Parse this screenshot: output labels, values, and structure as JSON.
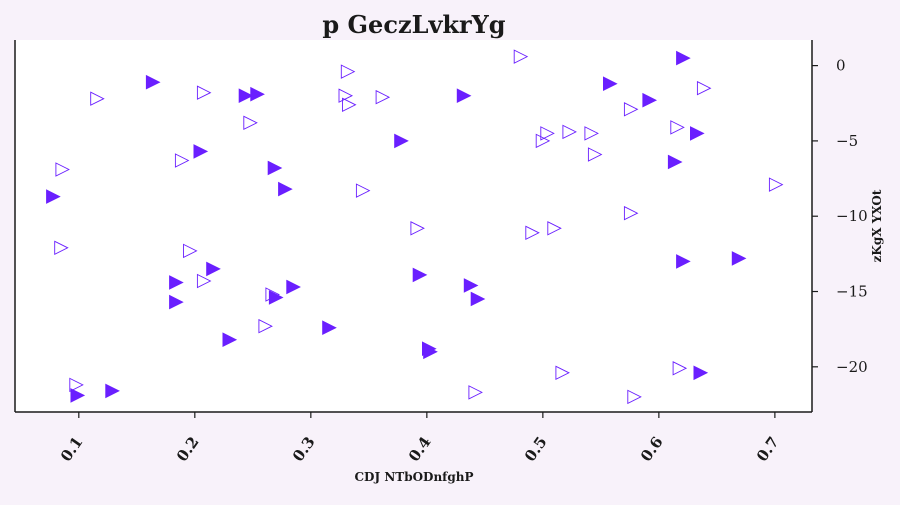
{
  "chart_data": {
    "type": "scatter",
    "title": "p GeczLvkrYg",
    "xlabel": "CDJ NTbODnfghP",
    "ylabel": "zKgX YXOt",
    "xlim": [
      0.045,
      0.732
    ],
    "ylim": [
      -23.0,
      1.7
    ],
    "xticks": [
      0.1,
      0.2,
      0.3,
      0.4,
      0.5,
      0.6,
      0.7
    ],
    "yticks": [
      0,
      -5,
      -10,
      -15,
      -20
    ],
    "y_axis_side": "right",
    "grid": false,
    "colors": {
      "marker": "#6a1fff",
      "background": "#ffffff",
      "page": "#f8f2fa"
    },
    "series": [
      {
        "marker": "filled-right-triangle",
        "points": [
          [
            0.163,
            -1.1
          ],
          [
            0.243,
            -2.0
          ],
          [
            0.253,
            -1.9
          ],
          [
            0.204,
            -5.7
          ],
          [
            0.268,
            -6.8
          ],
          [
            0.277,
            -8.2
          ],
          [
            0.077,
            -8.7
          ],
          [
            0.215,
            -13.5
          ],
          [
            0.183,
            -14.4
          ],
          [
            0.183,
            -15.7
          ],
          [
            0.284,
            -14.7
          ],
          [
            0.269,
            -15.4
          ],
          [
            0.229,
            -18.2
          ],
          [
            0.315,
            -17.4
          ],
          [
            0.128,
            -21.6
          ],
          [
            0.098,
            -21.9
          ],
          [
            0.377,
            -5.0
          ],
          [
            0.431,
            -2.0
          ],
          [
            0.393,
            -13.9
          ],
          [
            0.437,
            -14.6
          ],
          [
            0.443,
            -15.5
          ],
          [
            0.401,
            -18.8
          ],
          [
            0.402,
            -19.0
          ],
          [
            0.557,
            -1.2
          ],
          [
            0.591,
            -2.3
          ],
          [
            0.62,
            0.5
          ],
          [
            0.632,
            -4.5
          ],
          [
            0.613,
            -6.4
          ],
          [
            0.62,
            -13.0
          ],
          [
            0.668,
            -12.8
          ],
          [
            0.635,
            -20.4
          ]
        ]
      },
      {
        "marker": "hollow-right-triangle",
        "points": [
          [
            0.115,
            -2.2
          ],
          [
            0.085,
            -6.9
          ],
          [
            0.084,
            -12.1
          ],
          [
            0.097,
            -21.2
          ],
          [
            0.207,
            -1.8
          ],
          [
            0.247,
            -3.8
          ],
          [
            0.188,
            -6.3
          ],
          [
            0.195,
            -12.3
          ],
          [
            0.207,
            -14.3
          ],
          [
            0.266,
            -15.2
          ],
          [
            0.26,
            -17.3
          ],
          [
            0.331,
            -0.4
          ],
          [
            0.329,
            -2.0
          ],
          [
            0.332,
            -2.6
          ],
          [
            0.361,
            -2.1
          ],
          [
            0.344,
            -8.3
          ],
          [
            0.391,
            -10.8
          ],
          [
            0.441,
            -21.7
          ],
          [
            0.48,
            0.6
          ],
          [
            0.503,
            -4.5
          ],
          [
            0.499,
            -5.0
          ],
          [
            0.522,
            -4.4
          ],
          [
            0.541,
            -4.5
          ],
          [
            0.544,
            -5.9
          ],
          [
            0.49,
            -11.1
          ],
          [
            0.509,
            -10.8
          ],
          [
            0.516,
            -20.4
          ],
          [
            0.575,
            -9.8
          ],
          [
            0.578,
            -22.0
          ],
          [
            0.575,
            -2.9
          ],
          [
            0.615,
            -4.1
          ],
          [
            0.617,
            -20.1
          ],
          [
            0.638,
            -1.5
          ],
          [
            0.7,
            -7.9
          ]
        ]
      }
    ]
  }
}
